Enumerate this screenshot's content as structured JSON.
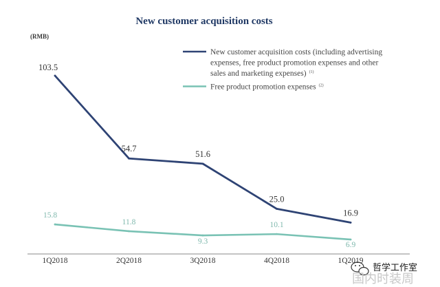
{
  "chart_data": {
    "type": "line",
    "title": "New customer acquisition costs",
    "unit_label": "(RMB)",
    "categories": [
      "1Q2018",
      "2Q2018",
      "3Q2018",
      "4Q2018",
      "1Q2019"
    ],
    "ylim": [
      0,
      110
    ],
    "grid": false,
    "legend_position": "top-right",
    "series": [
      {
        "name": "New customer acquisition costs (including advertising expenses, free product promotion expenses and other sales and marketing expenses)",
        "legend_lines": [
          "New customer acquisition costs (including advertising",
          "expenses, free product promotion expenses and other",
          "sales and marketing expenses)"
        ],
        "footnote": "(1)",
        "color": "#2e4374",
        "values": [
          103.5,
          54.7,
          51.6,
          25.0,
          16.9
        ],
        "labels": [
          "103.5",
          "54.7",
          "51.6",
          "25.0",
          "16.9"
        ]
      },
      {
        "name": "Free product promotion expenses",
        "legend_lines": [
          "Free product promotion expenses"
        ],
        "footnote": "(2)",
        "color": "#79c2b4",
        "values": [
          15.8,
          11.8,
          9.3,
          10.1,
          6.9
        ],
        "labels": [
          "15.8",
          "11.8",
          "9.3",
          "10.1",
          "6.9"
        ]
      }
    ]
  },
  "watermark": {
    "line1": "哲学工作室",
    "line2": "国内时装周",
    "icon": "wechat-icon"
  }
}
